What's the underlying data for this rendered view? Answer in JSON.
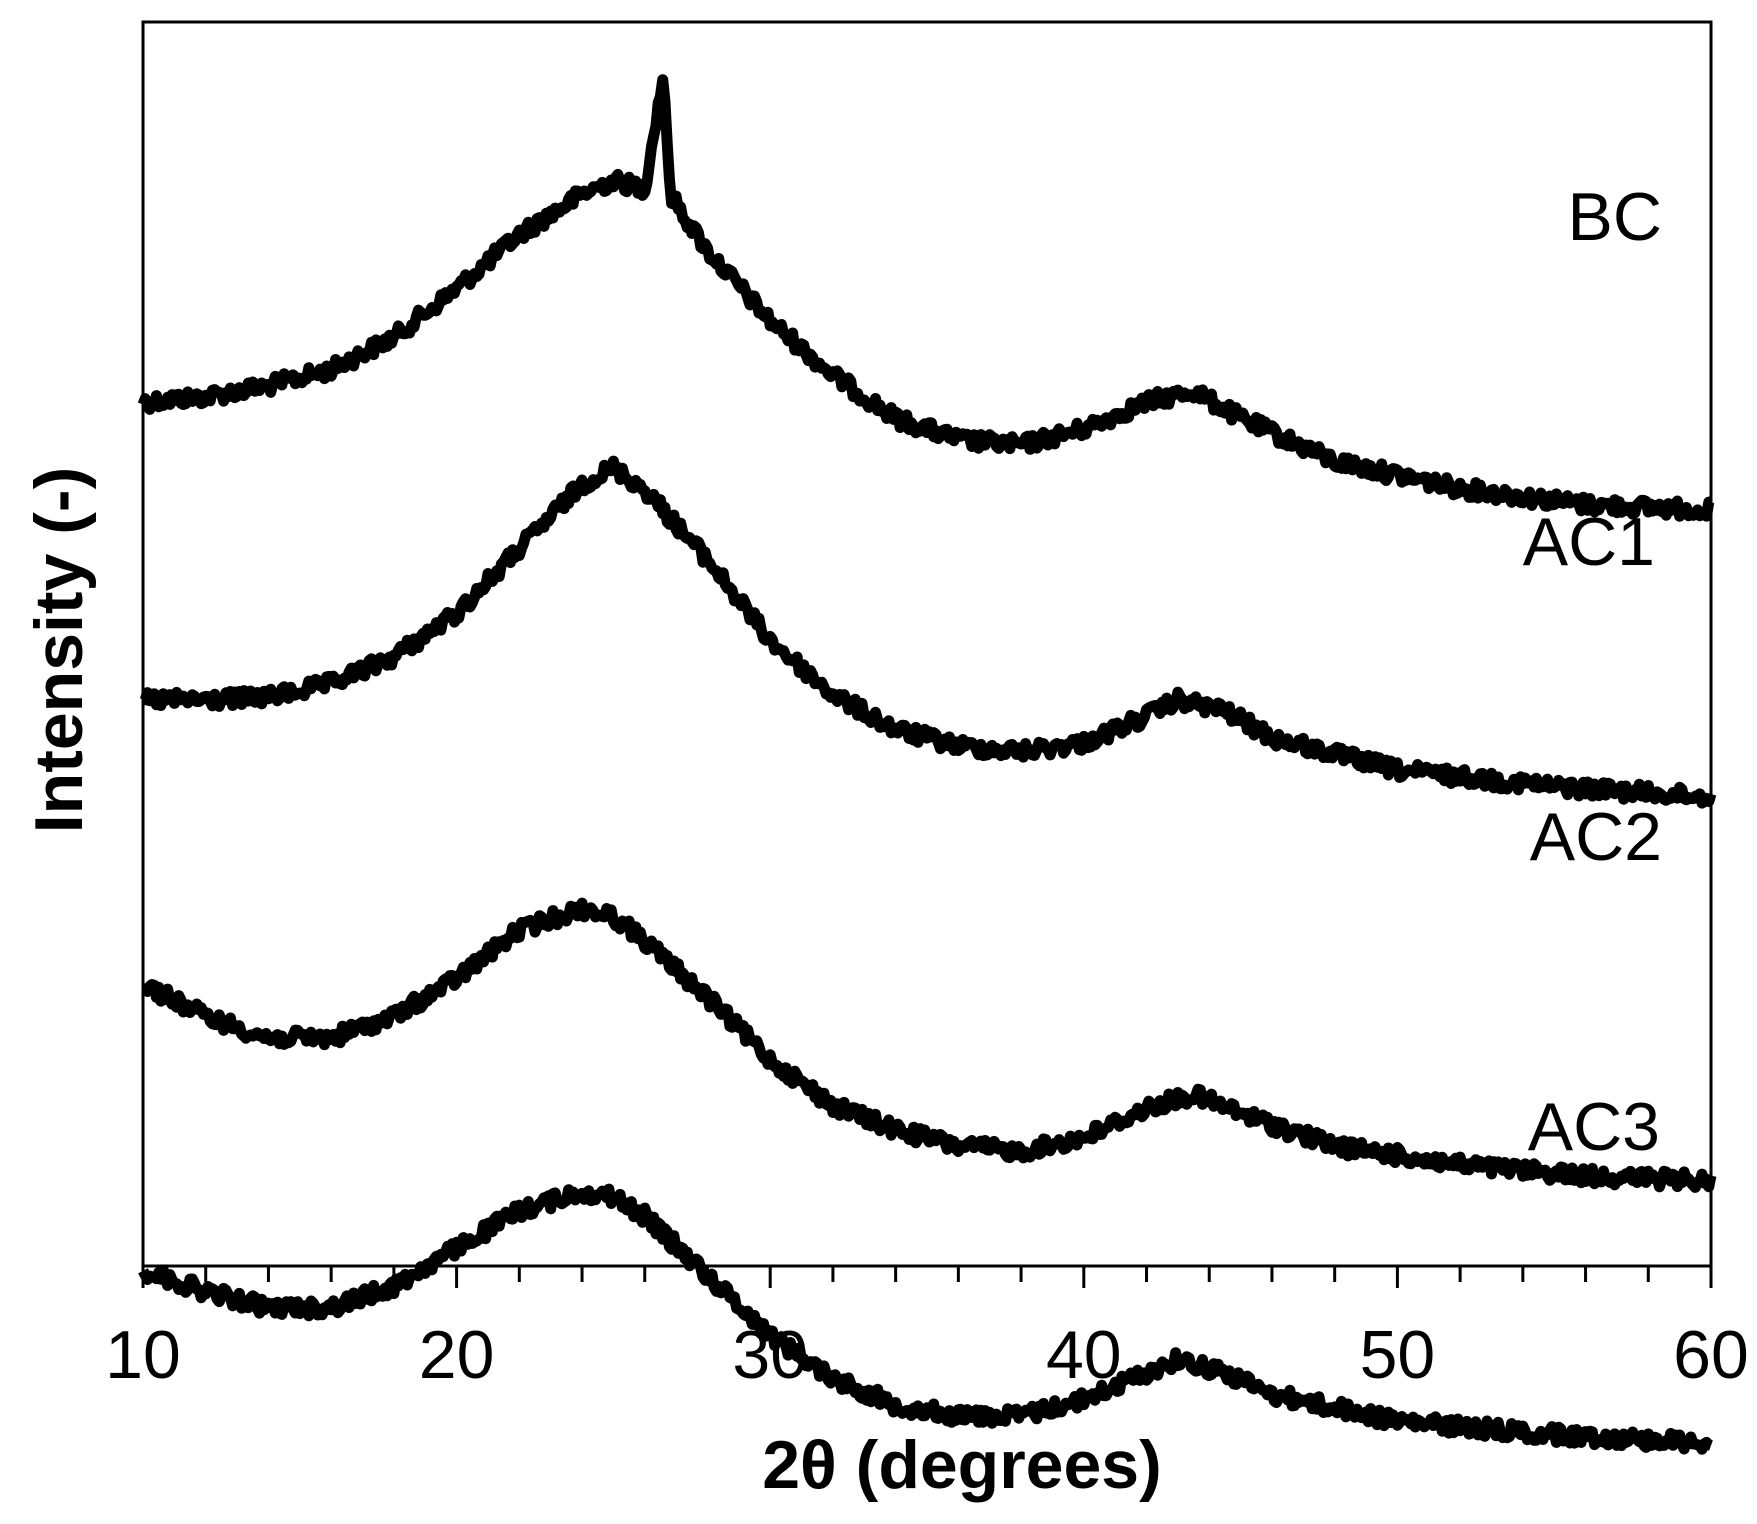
{
  "chart_data": {
    "type": "line",
    "xlabel": "2θ (degrees)",
    "ylabel": "Intensity (-)",
    "xlim": [
      10,
      60
    ],
    "x_ticks": [
      "10",
      "20",
      "30",
      "40",
      "50",
      "60"
    ],
    "minor_tick_step": 2,
    "y_ticks": [],
    "grid": false,
    "legend": "none",
    "line_color": "#000000",
    "series_order": "stacked top to bottom, offset vertically",
    "series": [
      {
        "name": "BC",
        "points": [
          [
            10,
            0.78
          ],
          [
            12,
            0.8
          ],
          [
            14,
            0.84
          ],
          [
            16,
            0.9
          ],
          [
            18,
            1.02
          ],
          [
            20,
            1.2
          ],
          [
            22,
            1.4
          ],
          [
            24,
            1.55
          ],
          [
            25,
            1.6
          ],
          [
            26,
            1.57
          ],
          [
            26.6,
            2.0
          ],
          [
            26.8,
            1.55
          ],
          [
            28,
            1.34
          ],
          [
            30,
            1.08
          ],
          [
            32,
            0.88
          ],
          [
            34,
            0.72
          ],
          [
            36,
            0.64
          ],
          [
            38,
            0.62
          ],
          [
            40,
            0.68
          ],
          [
            42,
            0.78
          ],
          [
            43.5,
            0.82
          ],
          [
            45,
            0.72
          ],
          [
            48,
            0.56
          ],
          [
            52,
            0.46
          ],
          [
            56,
            0.4
          ],
          [
            60,
            0.38
          ]
        ]
      },
      {
        "name": "AC1",
        "points": [
          [
            10,
            0.42
          ],
          [
            12,
            0.42
          ],
          [
            14,
            0.43
          ],
          [
            16,
            0.48
          ],
          [
            18,
            0.58
          ],
          [
            20,
            0.74
          ],
          [
            22,
            0.98
          ],
          [
            24,
            1.22
          ],
          [
            25,
            1.28
          ],
          [
            26,
            1.2
          ],
          [
            28,
            0.94
          ],
          [
            30,
            0.64
          ],
          [
            32,
            0.44
          ],
          [
            34,
            0.31
          ],
          [
            36,
            0.25
          ],
          [
            38,
            0.23
          ],
          [
            40,
            0.26
          ],
          [
            42,
            0.36
          ],
          [
            43,
            0.42
          ],
          [
            44.5,
            0.38
          ],
          [
            46,
            0.28
          ],
          [
            50,
            0.16
          ],
          [
            55,
            0.1
          ],
          [
            60,
            0.06
          ]
        ]
      },
      {
        "name": "AC2",
        "points": [
          [
            10,
            0.5
          ],
          [
            12,
            0.38
          ],
          [
            14,
            0.3
          ],
          [
            16,
            0.3
          ],
          [
            18,
            0.38
          ],
          [
            20,
            0.52
          ],
          [
            22,
            0.7
          ],
          [
            24,
            0.78
          ],
          [
            25,
            0.75
          ],
          [
            26,
            0.66
          ],
          [
            28,
            0.45
          ],
          [
            30,
            0.22
          ],
          [
            32,
            0.05
          ],
          [
            34,
            -0.04
          ],
          [
            36,
            -0.1
          ],
          [
            38,
            -0.12
          ],
          [
            40,
            -0.07
          ],
          [
            42,
            0.04
          ],
          [
            43.5,
            0.09
          ],
          [
            45,
            0.02
          ],
          [
            48,
            -0.1
          ],
          [
            52,
            -0.17
          ],
          [
            56,
            -0.21
          ],
          [
            60,
            -0.23
          ]
        ]
      },
      {
        "name": "AC3",
        "points": [
          [
            10,
            -0.22
          ],
          [
            12,
            -0.3
          ],
          [
            14,
            -0.36
          ],
          [
            16,
            -0.36
          ],
          [
            18,
            -0.28
          ],
          [
            20,
            -0.14
          ],
          [
            22,
            0.0
          ],
          [
            24,
            0.07
          ],
          [
            25,
            0.05
          ],
          [
            26,
            -0.02
          ],
          [
            28,
            -0.24
          ],
          [
            30,
            -0.46
          ],
          [
            32,
            -0.62
          ],
          [
            34,
            -0.72
          ],
          [
            36,
            -0.76
          ],
          [
            38,
            -0.76
          ],
          [
            40,
            -0.7
          ],
          [
            42,
            -0.6
          ],
          [
            43,
            -0.55
          ],
          [
            44.5,
            -0.6
          ],
          [
            46,
            -0.68
          ],
          [
            50,
            -0.78
          ],
          [
            55,
            -0.83
          ],
          [
            60,
            -0.86
          ]
        ]
      }
    ]
  }
}
